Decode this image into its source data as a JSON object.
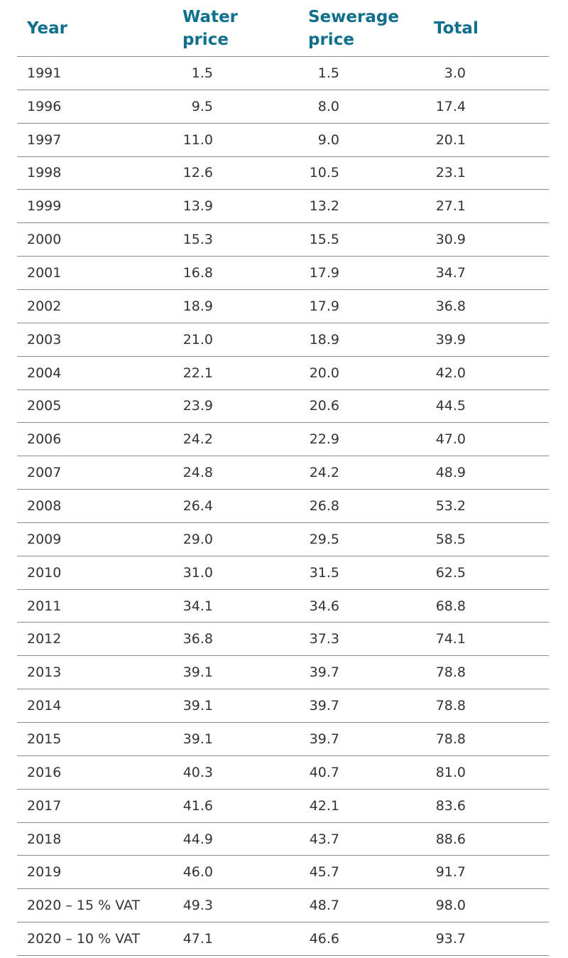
{
  "table": {
    "header": [
      "Year",
      "Water price",
      "Sewerage price",
      "Total"
    ],
    "rows": [
      [
        "1991",
        "1.5",
        "1.5",
        "3.0"
      ],
      [
        "1996",
        "9.5",
        "8.0",
        "17.4"
      ],
      [
        "1997",
        "11.0",
        "9.0",
        "20.1"
      ],
      [
        "1998",
        "12.6",
        "10.5",
        "23.1"
      ],
      [
        "1999",
        "13.9",
        "13.2",
        "27.1"
      ],
      [
        "2000",
        "15.3",
        "15.5",
        "30.9"
      ],
      [
        "2001",
        "16.8",
        "17.9",
        "34.7"
      ],
      [
        "2002",
        "18.9",
        "17.9",
        "36.8"
      ],
      [
        "2003",
        "21.0",
        "18.9",
        "39.9"
      ],
      [
        "2004",
        "22.1",
        "20.0",
        "42.0"
      ],
      [
        "2005",
        "23.9",
        "20.6",
        "44.5"
      ],
      [
        "2006",
        "24.2",
        "22.9",
        "47.0"
      ],
      [
        "2007",
        "24.8",
        "24.2",
        "48.9"
      ],
      [
        "2008",
        "26.4",
        "26.8",
        "53.2"
      ],
      [
        "2009",
        "29.0",
        "29.5",
        "58.5"
      ],
      [
        "2010",
        "31.0",
        "31.5",
        "62.5"
      ],
      [
        "2011",
        "34.1",
        "34.6",
        "68.8"
      ],
      [
        "2012",
        "36.8",
        "37.3",
        "74.1"
      ],
      [
        "2013",
        "39.1",
        "39.7",
        "78.8"
      ],
      [
        "2014",
        "39.1",
        "39.7",
        "78.8"
      ],
      [
        "2015",
        "39.1",
        "39.7",
        "78.8"
      ],
      [
        "2016",
        "40.3",
        "40.7",
        "81.0"
      ],
      [
        "2017",
        "41.6",
        "42.1",
        "83.6"
      ],
      [
        "2018",
        "44.9",
        "43.7",
        "88.6"
      ],
      [
        "2019",
        "46.0",
        "45.7",
        "91.7"
      ],
      [
        "2020 – 15 % VAT",
        "49.3",
        "48.7",
        "98.0"
      ],
      [
        "2020 – 10 % VAT",
        "47.1",
        "46.6",
        "93.7"
      ]
    ]
  }
}
